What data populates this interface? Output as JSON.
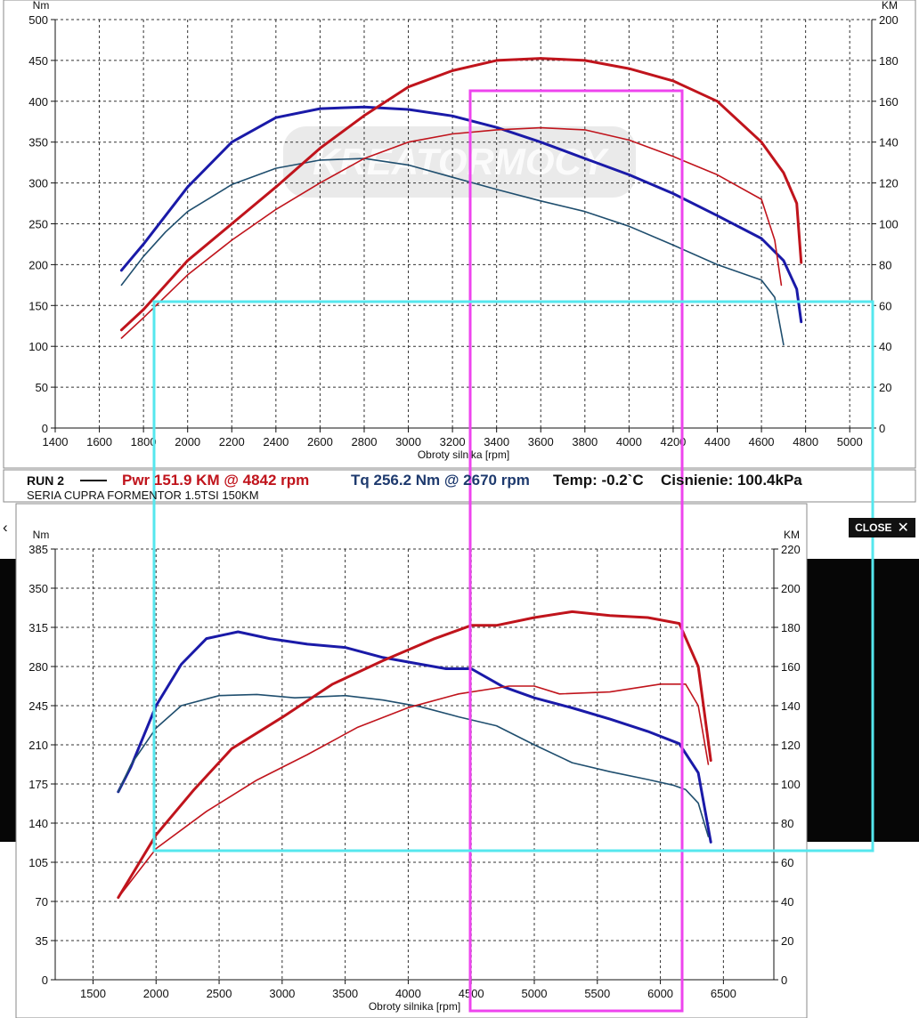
{
  "colors": {
    "power": "#c0141c",
    "torque": "#1a1aa8",
    "torque_thin": "#1f4e6e",
    "overlay_magenta": "#ee44ee",
    "overlay_cyan": "#55e7ee"
  },
  "run": {
    "label": "RUN 2",
    "power": "Pwr 151.9 KM @ 4842 rpm",
    "torque": "Tq 256.2 Nm @ 2670 rpm",
    "temp": "Temp: -0.2`C",
    "pressure": "Cisnienie: 100.4kPa",
    "caption": "SERIA CUPRA FORMENTOR 1.5TSI 150KM"
  },
  "watermark": "KREATORMOCY",
  "ui": {
    "close_label": "CLOSE",
    "close_icon": "close-icon",
    "prev_icon": "chevron-left-icon"
  },
  "chart_data": [
    {
      "type": "line",
      "xlabel": "Obroty silnika [rpm]",
      "ylabel_left": "Nm",
      "ylabel_right": "KM",
      "xlim": [
        1400,
        5100
      ],
      "ylim_left": [
        0,
        500
      ],
      "ylim_right": [
        0,
        200
      ],
      "xticks": [
        1400,
        1600,
        1800,
        2000,
        2200,
        2400,
        2600,
        2800,
        3000,
        3200,
        3400,
        3600,
        3800,
        4000,
        4200,
        4400,
        4600,
        4800,
        5000
      ],
      "yticks_left": [
        0,
        50,
        100,
        150,
        200,
        250,
        300,
        350,
        400,
        450,
        500
      ],
      "yticks_right": [
        0,
        20,
        40,
        60,
        80,
        100,
        120,
        140,
        160,
        180,
        200
      ],
      "grid": true,
      "series": [
        {
          "role": "torque_after",
          "axis": "left",
          "x": [
            1700,
            1800,
            1900,
            2000,
            2200,
            2400,
            2600,
            2800,
            3000,
            3200,
            3400,
            3600,
            3800,
            4000,
            4200,
            4400,
            4600,
            4700,
            4760,
            4780
          ],
          "y": [
            193,
            225,
            260,
            295,
            350,
            380,
            391,
            393,
            390,
            382,
            368,
            350,
            330,
            310,
            287,
            260,
            232,
            205,
            170,
            130
          ]
        },
        {
          "role": "torque_stock",
          "axis": "left",
          "x": [
            1700,
            1800,
            1900,
            2000,
            2200,
            2400,
            2600,
            2800,
            3000,
            3200,
            3400,
            3600,
            3800,
            4000,
            4200,
            4400,
            4600,
            4660,
            4700
          ],
          "y": [
            175,
            210,
            240,
            265,
            298,
            318,
            328,
            330,
            322,
            307,
            292,
            278,
            265,
            247,
            224,
            200,
            181,
            160,
            102
          ]
        },
        {
          "role": "power_after",
          "axis": "right",
          "x": [
            1700,
            1800,
            2000,
            2200,
            2400,
            2600,
            2800,
            3000,
            3200,
            3400,
            3600,
            3800,
            4000,
            4200,
            4400,
            4600,
            4700,
            4760,
            4780
          ],
          "y": [
            48,
            58,
            82,
            100,
            118,
            137,
            153,
            167,
            175,
            180,
            181,
            180,
            176,
            170,
            160,
            140,
            125,
            110,
            81
          ]
        },
        {
          "role": "power_stock",
          "axis": "right",
          "x": [
            1700,
            1800,
            2000,
            2200,
            2400,
            2600,
            2800,
            3000,
            3200,
            3400,
            3600,
            3800,
            4000,
            4200,
            4400,
            4600,
            4660,
            4690
          ],
          "y": [
            44,
            54,
            75,
            92,
            107,
            120,
            132,
            140,
            144,
            146,
            147,
            146,
            141,
            133,
            124,
            112,
            92,
            70
          ]
        }
      ]
    },
    {
      "type": "line",
      "xlabel": "Obroty silnika [rpm]",
      "ylabel_left": "Nm",
      "ylabel_right": "KM",
      "xlim": [
        1200,
        6900
      ],
      "ylim_left": [
        0,
        385
      ],
      "ylim_right": [
        0,
        220
      ],
      "xticks": [
        1500,
        2000,
        2500,
        3000,
        3500,
        4000,
        4500,
        5000,
        5500,
        6000,
        6500
      ],
      "yticks_left": [
        0,
        35,
        70,
        105,
        140,
        175,
        210,
        245,
        280,
        315,
        350,
        385
      ],
      "yticks_right": [
        0,
        20,
        40,
        60,
        80,
        100,
        120,
        140,
        160,
        180,
        200,
        220
      ],
      "grid": true,
      "series": [
        {
          "role": "torque_after",
          "axis": "left",
          "x": [
            1700,
            1800,
            2000,
            2200,
            2400,
            2650,
            2900,
            3200,
            3500,
            3800,
            4100,
            4300,
            4500,
            4750,
            5000,
            5300,
            5600,
            5900,
            6150,
            6300,
            6400
          ],
          "y": [
            168,
            190,
            245,
            282,
            305,
            311,
            305,
            300,
            297,
            288,
            282,
            278,
            278,
            262,
            252,
            243,
            233,
            222,
            211,
            185,
            123
          ]
        },
        {
          "role": "torque_stock",
          "axis": "left",
          "x": [
            1700,
            1800,
            2000,
            2200,
            2500,
            2800,
            3100,
            3500,
            3800,
            4100,
            4400,
            4700,
            5000,
            5300,
            5600,
            5900,
            6100,
            6200,
            6300,
            6380
          ],
          "y": [
            168,
            192,
            225,
            245,
            254,
            255,
            252,
            254,
            250,
            244,
            235,
            227,
            210,
            194,
            186,
            179,
            174,
            170,
            158,
            128
          ]
        },
        {
          "role": "power_after",
          "axis": "right",
          "x": [
            1700,
            2000,
            2300,
            2600,
            3000,
            3400,
            3800,
            4200,
            4500,
            4700,
            5000,
            5300,
            5600,
            5900,
            6150,
            6300,
            6400
          ],
          "y": [
            42,
            74,
            97,
            118,
            134,
            151,
            163,
            174,
            181,
            181,
            185,
            188,
            186,
            185,
            182,
            160,
            112
          ]
        },
        {
          "role": "power_stock",
          "axis": "right",
          "x": [
            1700,
            2000,
            2400,
            2800,
            3200,
            3600,
            4000,
            4400,
            4800,
            5000,
            5200,
            5600,
            6000,
            6200,
            6300,
            6380
          ],
          "y": [
            42,
            67,
            86,
            102,
            115,
            129,
            139,
            146,
            150,
            150,
            146,
            147,
            151,
            151,
            140,
            110
          ]
        }
      ]
    }
  ]
}
